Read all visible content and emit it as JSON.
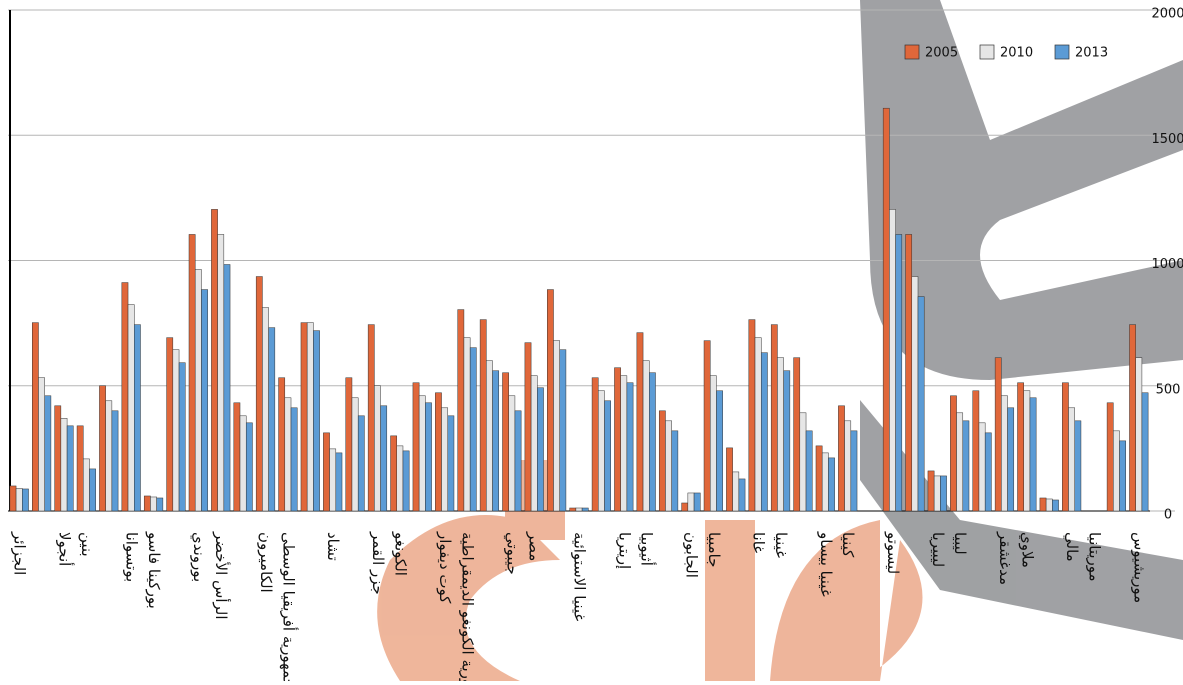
{
  "chart_data": {
    "type": "bar",
    "categories": [
      "الجزائر",
      null,
      "أنجولا",
      "بنين",
      null,
      "بوتسوانا",
      "بوركينا فاسو",
      null,
      "بوروندي",
      "الرأس الأخضر",
      null,
      "الكاميرون",
      "جمهورية أفريقيا الوسطى",
      null,
      "تشاد",
      null,
      "جزر القمر",
      "الكونغو",
      null,
      "كوت ديفوار",
      "جمهورية الكونغو الديمقراطية",
      null,
      "جيبوتي",
      "مصر",
      null,
      "غينيا الاستوائية",
      null,
      "إريتريا",
      "أثيوبيا",
      null,
      "الجابون",
      "جامبيا",
      null,
      "غانا",
      "غينيا",
      null,
      "غينيا بيساو",
      "كينيا",
      null,
      "ليسوتو",
      null,
      "ليبيريا",
      "ليبيا",
      null,
      "مدغشقر",
      "ملاوي",
      null,
      "مالي",
      "موريتانيا",
      null,
      "موريشيوس"
    ],
    "series": [
      {
        "name": "2005",
        "color": "#e0673a",
        "values": [
          100,
          752,
          420,
          340,
          500,
          912,
          60,
          692,
          1104,
          1204,
          432,
          936,
          532,
          752,
          312,
          532,
          744,
          300,
          512,
          472,
          804,
          764,
          552,
          672,
          884,
          12,
          532,
          572,
          712,
          400,
          32,
          680,
          252,
          764,
          744,
          612,
          260,
          420,
          null,
          1608,
          1104,
          160,
          460,
          480,
          612,
          512,
          52,
          512,
          null,
          432,
          744
        ]
      },
      {
        "name": "2010",
        "color": "#e6e6e6",
        "values": [
          90,
          532,
          370,
          208,
          440,
          824,
          56,
          644,
          964,
          1104,
          380,
          812,
          452,
          752,
          248,
          452,
          500,
          260,
          460,
          412,
          692,
          600,
          460,
          540,
          680,
          12,
          480,
          540,
          600,
          360,
          72,
          540,
          156,
          692,
          612,
          392,
          232,
          360,
          null,
          1204,
          936,
          140,
          392,
          352,
          460,
          480,
          48,
          412,
          null,
          320,
          612
        ]
      },
      {
        "name": "2013",
        "color": "#5b9bd5",
        "values": [
          88,
          460,
          340,
          168,
          400,
          744,
          52,
          592,
          884,
          984,
          352,
          732,
          412,
          720,
          232,
          380,
          420,
          240,
          432,
          380,
          652,
          560,
          400,
          492,
          644,
          12,
          440,
          512,
          552,
          320,
          72,
          480,
          128,
          632,
          560,
          320,
          212,
          320,
          null,
          1104,
          856,
          140,
          360,
          312,
          412,
          452,
          44,
          360,
          null,
          280,
          472
        ]
      }
    ],
    "ylim": [
      0,
      2000
    ],
    "yticks": [
      0,
      500,
      1000,
      1500,
      2000
    ],
    "grid": true,
    "legend": "top-right"
  }
}
